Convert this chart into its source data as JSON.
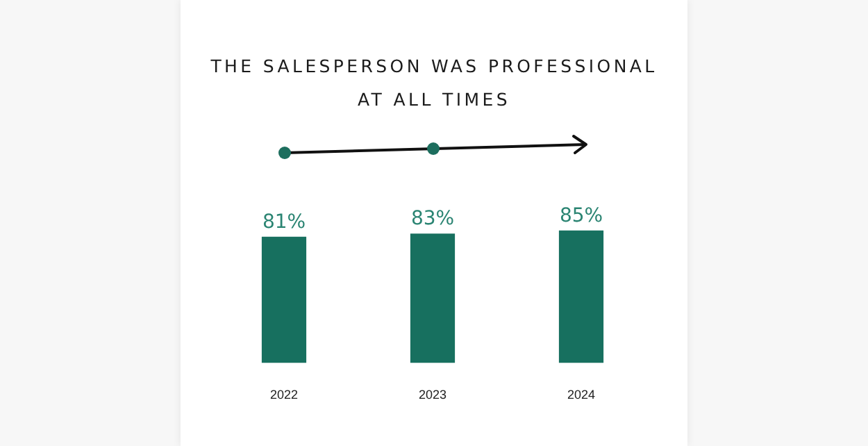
{
  "chart_data": {
    "type": "bar",
    "title": "THE SALESPERSON WAS PROFESSIONAL AT ALL TIMES",
    "categories": [
      "2022",
      "2023",
      "2024"
    ],
    "values": [
      81,
      83,
      85
    ],
    "color": "#17705f",
    "value_labels": [
      "81%",
      "83%",
      "85%"
    ]
  }
}
